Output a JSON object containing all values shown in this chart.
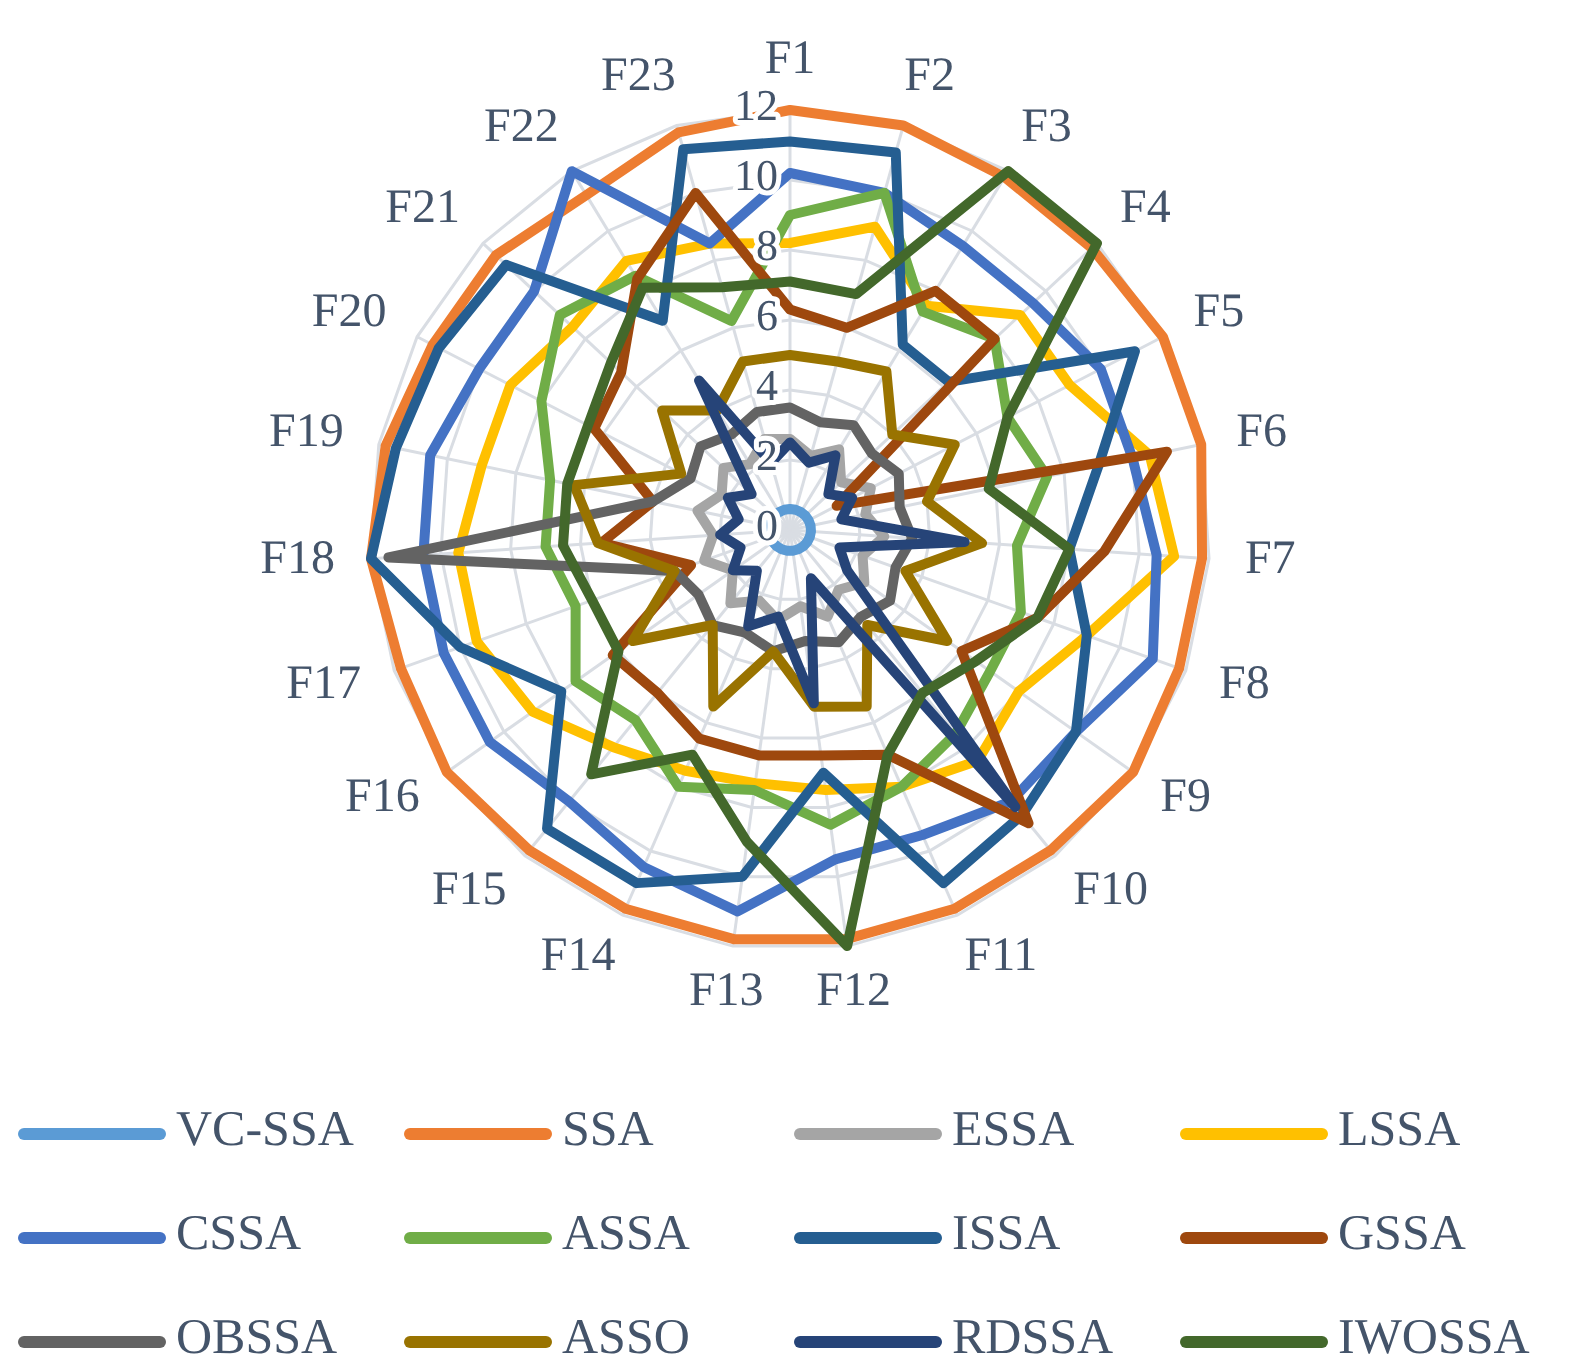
{
  "chart_data": {
    "type": "radar",
    "categories": [
      "F1",
      "F2",
      "F3",
      "F4",
      "F5",
      "F6",
      "F7",
      "F8",
      "F9",
      "F10",
      "F11",
      "F12",
      "F13",
      "F14",
      "F15",
      "F16",
      "F17",
      "F18",
      "F19",
      "F20",
      "F21",
      "F22",
      "F23"
    ],
    "ylim": [
      0,
      12
    ],
    "yticks": [
      0,
      2,
      4,
      6,
      8,
      10,
      12
    ],
    "grid": true,
    "legend": "bottom",
    "marker": "none",
    "line_style": "solid",
    "series": [
      {
        "name": "VC-SSA",
        "color": "#5b9bd5",
        "values": [
          0.6,
          0.6,
          0.6,
          0.6,
          0.6,
          0.6,
          0.6,
          0.6,
          0.6,
          0.6,
          0.6,
          0.6,
          0.6,
          0.6,
          0.6,
          0.6,
          0.6,
          0.6,
          0.6,
          0.6,
          0.6,
          0.6,
          0.6
        ]
      },
      {
        "name": "SSA",
        "color": "#ed7d31",
        "values": [
          12,
          12,
          11.8,
          11.8,
          12,
          12,
          11.8,
          11.8,
          12,
          11.8,
          11.8,
          11.8,
          11.8,
          11.8,
          11.8,
          12,
          11.8,
          12,
          11.8,
          11.5,
          11.5,
          11.2,
          11.8
        ]
      },
      {
        "name": "ESSA",
        "color": "#a5a5a5",
        "values": [
          2.6,
          2.2,
          2.7,
          2,
          2.6,
          2.2,
          2.7,
          2.2,
          2.6,
          2.2,
          2.7,
          2.2,
          2.6,
          2.2,
          2.7,
          2,
          2.6,
          2.2,
          2.7,
          2.2,
          2.6,
          2.2,
          2.7
        ]
      },
      {
        "name": "LSSA",
        "color": "#ffc000",
        "values": [
          8.2,
          9,
          7.5,
          9,
          9,
          10.5,
          11,
          9,
          8,
          8.5,
          8,
          7.5,
          7.3,
          7.5,
          8,
          9,
          9.5,
          9.5,
          9,
          9,
          8.5,
          9,
          8.5
        ]
      },
      {
        "name": "CSSA",
        "color": "#4472c4",
        "values": [
          10.2,
          10,
          9.5,
          9.5,
          10,
          10,
          10.5,
          11,
          10,
          10,
          9.5,
          9.5,
          11,
          10.5,
          10,
          10.5,
          10.5,
          10.5,
          10.5,
          10,
          10,
          12,
          8.5
        ]
      },
      {
        "name": "ASSA",
        "color": "#70ad47",
        "values": [
          9,
          10,
          7.3,
          8,
          7,
          7.5,
          6.5,
          7,
          7,
          7.5,
          8,
          8.5,
          7.5,
          8,
          7,
          7.5,
          6.5,
          7,
          7,
          8,
          9,
          8.5,
          6.2
        ]
      },
      {
        "name": "ISSA",
        "color": "#255e91",
        "values": [
          11.1,
          11.2,
          6.2,
          6.2,
          11.1,
          9,
          8,
          9,
          10,
          10.5,
          11,
          7,
          10,
          11,
          11,
          8,
          10,
          12,
          11.5,
          11.3,
          11.1,
          7,
          11.3
        ]
      },
      {
        "name": "GSSA",
        "color": "#9e480e",
        "values": [
          6.3,
          6,
          8,
          8,
          1.5,
          11,
          9,
          7.5,
          6,
          10.8,
          7,
          6.5,
          6.5,
          6.5,
          6,
          6.2,
          3,
          5.4,
          4,
          6.3,
          6.6,
          8.4,
          10
        ]
      },
      {
        "name": "OBSSA",
        "color": "#636363",
        "values": [
          3.5,
          3.2,
          3.5,
          3.2,
          3.5,
          3.2,
          3.5,
          3.2,
          3.5,
          3.2,
          3.5,
          3.2,
          3.5,
          3.2,
          3.5,
          3.2,
          3.5,
          11.5,
          4,
          3.2,
          3.5,
          3.2,
          3.5
        ]
      },
      {
        "name": "ASSO",
        "color": "#997300",
        "values": [
          5,
          5,
          5.3,
          4,
          5.3,
          4,
          5.5,
          3.5,
          5.5,
          3.5,
          5.5,
          5.1,
          3.5,
          5.5,
          3.5,
          5.5,
          3.5,
          5.5,
          6.3,
          3.5,
          5,
          4,
          5
        ]
      },
      {
        "name": "RDSSA",
        "color": "#264478",
        "values": [
          2.5,
          2,
          2.5,
          1.5,
          2,
          1.5,
          5,
          1.5,
          2,
          10.2,
          1.5,
          5,
          2.5,
          3,
          1.5,
          2,
          1.5,
          2,
          1.5,
          2,
          1.5,
          5,
          2
        ]
      },
      {
        "name": "IWOSSA",
        "color": "#43682b",
        "values": [
          7.1,
          7,
          12,
          12,
          7,
          5.8,
          8,
          7.5,
          6.5,
          6,
          7,
          12,
          9,
          7,
          9,
          6,
          6,
          6.5,
          6.5,
          6.5,
          7,
          8.1,
          7.2
        ]
      }
    ]
  }
}
